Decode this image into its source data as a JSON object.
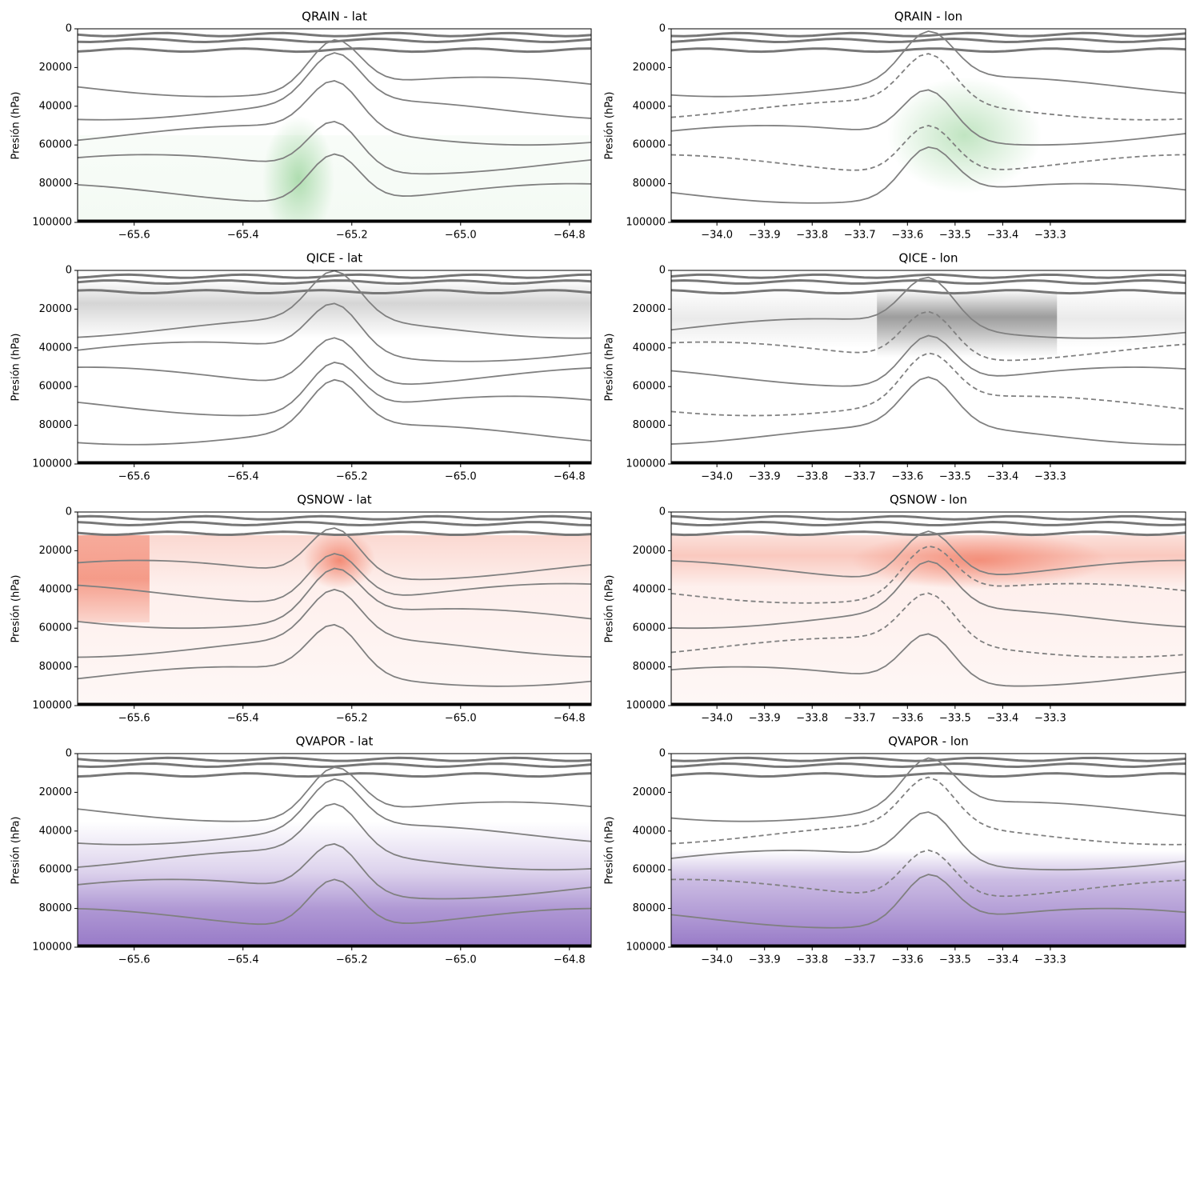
{
  "chart_data": [
    {
      "type": "contour",
      "title": "QRAIN - lat",
      "ylabel": "Presión (hPa)",
      "color": "#74c476",
      "xlim": [
        -65.704,
        -64.76
      ],
      "ylim": [
        100000,
        0
      ],
      "xticks": [
        {
          "value": -65.6,
          "label": "−65.6"
        },
        {
          "value": -65.4,
          "label": "−65.4"
        },
        {
          "value": -65.2,
          "label": "−65.2"
        },
        {
          "value": -65.0,
          "label": "−65.0"
        },
        {
          "value": -64.8,
          "label": "−64.8"
        }
      ],
      "yticks": [
        0,
        20000,
        40000,
        60000,
        80000,
        100000
      ]
    },
    {
      "type": "contour",
      "title": "QRAIN - lon",
      "ylabel": "Presión (hPa)",
      "color": "#74c476",
      "xlim": [
        -34.096,
        -33.016
      ],
      "ylim": [
        100000,
        0
      ],
      "xticks": [
        {
          "value": -34.0,
          "label": "−34.0"
        },
        {
          "value": -33.9,
          "label": "−33.9"
        },
        {
          "value": -33.8,
          "label": "−33.8"
        },
        {
          "value": -33.7,
          "label": "−33.7"
        },
        {
          "value": -33.6,
          "label": "−33.6"
        },
        {
          "value": -33.5,
          "label": "−33.5"
        },
        {
          "value": -33.4,
          "label": "−33.4"
        },
        {
          "value": -33.3,
          "label": "−33.3"
        }
      ],
      "yticks": [
        0,
        20000,
        40000,
        60000,
        80000,
        100000
      ]
    },
    {
      "type": "contour",
      "title": "QICE - lat",
      "ylabel": "Presión (hPa)",
      "color": "#737373",
      "xlim": [
        -65.704,
        -64.76
      ],
      "ylim": [
        100000,
        0
      ],
      "xticks": [
        {
          "value": -65.6,
          "label": "−65.6"
        },
        {
          "value": -65.4,
          "label": "−65.4"
        },
        {
          "value": -65.2,
          "label": "−65.2"
        },
        {
          "value": -65.0,
          "label": "−65.0"
        },
        {
          "value": -64.8,
          "label": "−64.8"
        }
      ],
      "yticks": [
        0,
        20000,
        40000,
        60000,
        80000,
        100000
      ]
    },
    {
      "type": "contour",
      "title": "QICE - lon",
      "ylabel": "Presión (hPa)",
      "color": "#737373",
      "xlim": [
        -34.096,
        -33.016
      ],
      "ylim": [
        100000,
        0
      ],
      "xticks": [
        {
          "value": -34.0,
          "label": "−34.0"
        },
        {
          "value": -33.9,
          "label": "−33.9"
        },
        {
          "value": -33.8,
          "label": "−33.8"
        },
        {
          "value": -33.7,
          "label": "−33.7"
        },
        {
          "value": -33.6,
          "label": "−33.6"
        },
        {
          "value": -33.5,
          "label": "−33.5"
        },
        {
          "value": -33.4,
          "label": "−33.4"
        },
        {
          "value": -33.3,
          "label": "−33.3"
        }
      ],
      "yticks": [
        0,
        20000,
        40000,
        60000,
        80000,
        100000
      ]
    },
    {
      "type": "contour",
      "title": "QSNOW - lat",
      "ylabel": "Presión (hPa)",
      "color": "#ef6548",
      "xlim": [
        -65.704,
        -64.76
      ],
      "ylim": [
        100000,
        0
      ],
      "xticks": [
        {
          "value": -65.6,
          "label": "−65.6"
        },
        {
          "value": -65.4,
          "label": "−65.4"
        },
        {
          "value": -65.2,
          "label": "−65.2"
        },
        {
          "value": -65.0,
          "label": "−65.0"
        },
        {
          "value": -64.8,
          "label": "−64.8"
        }
      ],
      "yticks": [
        0,
        20000,
        40000,
        60000,
        80000,
        100000
      ]
    },
    {
      "type": "contour",
      "title": "QSNOW - lon",
      "ylabel": "Presión (hPa)",
      "color": "#ef6548",
      "xlim": [
        -34.096,
        -33.016
      ],
      "ylim": [
        100000,
        0
      ],
      "xticks": [
        {
          "value": -34.0,
          "label": "−34.0"
        },
        {
          "value": -33.9,
          "label": "−33.9"
        },
        {
          "value": -33.8,
          "label": "−33.8"
        },
        {
          "value": -33.7,
          "label": "−33.7"
        },
        {
          "value": -33.6,
          "label": "−33.6"
        },
        {
          "value": -33.5,
          "label": "−33.5"
        },
        {
          "value": -33.4,
          "label": "−33.4"
        },
        {
          "value": -33.3,
          "label": "−33.3"
        }
      ],
      "yticks": [
        0,
        20000,
        40000,
        60000,
        80000,
        100000
      ]
    },
    {
      "type": "contour",
      "title": "QVAPOR - lat",
      "ylabel": "Presión (hPa)",
      "color": "#8c6bc1",
      "xlim": [
        -65.704,
        -64.76
      ],
      "ylim": [
        100000,
        0
      ],
      "xticks": [
        {
          "value": -65.6,
          "label": "−65.6"
        },
        {
          "value": -65.4,
          "label": "−65.4"
        },
        {
          "value": -65.2,
          "label": "−65.2"
        },
        {
          "value": -65.0,
          "label": "−65.0"
        },
        {
          "value": -64.8,
          "label": "−64.8"
        }
      ],
      "yticks": [
        0,
        20000,
        40000,
        60000,
        80000,
        100000
      ]
    },
    {
      "type": "contour",
      "title": "QVAPOR - lon",
      "ylabel": "Presión (hPa)",
      "color": "#8c6bc1",
      "xlim": [
        -34.096,
        -33.016
      ],
      "ylim": [
        100000,
        0
      ],
      "xticks": [
        {
          "value": -34.0,
          "label": "−34.0"
        },
        {
          "value": -33.9,
          "label": "−33.9"
        },
        {
          "value": -33.8,
          "label": "−33.8"
        },
        {
          "value": -33.7,
          "label": "−33.7"
        },
        {
          "value": -33.6,
          "label": "−33.6"
        },
        {
          "value": -33.5,
          "label": "−33.5"
        },
        {
          "value": -33.4,
          "label": "−33.4"
        },
        {
          "value": -33.3,
          "label": "−33.3"
        }
      ],
      "yticks": [
        0,
        20000,
        40000,
        60000,
        80000,
        100000
      ]
    }
  ]
}
